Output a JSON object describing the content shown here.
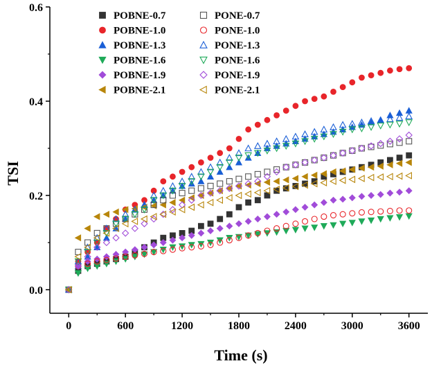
{
  "chart_data": {
    "type": "scatter",
    "title": "",
    "xlabel": "Time (s)",
    "ylabel": "TSI",
    "xlim": [
      -200,
      3800
    ],
    "ylim": [
      -0.05,
      0.6
    ],
    "xticks": [
      0,
      600,
      1200,
      1800,
      2400,
      3000,
      3600
    ],
    "xtick_labels": [
      "0",
      "600",
      "1200",
      "1800",
      "2400",
      "3000",
      "3600"
    ],
    "yticks": [
      0.0,
      0.2,
      0.4,
      0.6
    ],
    "ytick_labels": [
      "0.0",
      "0.2",
      "0.4",
      "0.6"
    ],
    "grid": false,
    "legend_position": "top-left",
    "x": [
      0,
      100,
      200,
      300,
      400,
      500,
      600,
      700,
      800,
      900,
      1000,
      1100,
      1200,
      1300,
      1400,
      1500,
      1600,
      1700,
      1800,
      1900,
      2000,
      2100,
      2200,
      2300,
      2400,
      2500,
      2600,
      2700,
      2800,
      2900,
      3000,
      3100,
      3200,
      3300,
      3400,
      3500,
      3600
    ],
    "series": [
      {
        "name": "POBNE-0.7",
        "marker": "square",
        "filled": true,
        "color": "#333333",
        "values": [
          0,
          0.04,
          0.05,
          0.055,
          0.06,
          0.065,
          0.07,
          0.08,
          0.09,
          0.1,
          0.11,
          0.115,
          0.12,
          0.125,
          0.135,
          0.14,
          0.15,
          0.16,
          0.175,
          0.185,
          0.19,
          0.2,
          0.21,
          0.215,
          0.22,
          0.225,
          0.23,
          0.24,
          0.245,
          0.25,
          0.255,
          0.26,
          0.265,
          0.27,
          0.275,
          0.28,
          0.285
        ]
      },
      {
        "name": "POBNE-1.0",
        "marker": "circle",
        "filled": true,
        "color": "#e8252a",
        "values": [
          0,
          0.06,
          0.08,
          0.1,
          0.13,
          0.15,
          0.17,
          0.18,
          0.19,
          0.21,
          0.23,
          0.24,
          0.25,
          0.26,
          0.27,
          0.28,
          0.29,
          0.3,
          0.32,
          0.34,
          0.35,
          0.36,
          0.37,
          0.38,
          0.39,
          0.4,
          0.405,
          0.41,
          0.42,
          0.43,
          0.44,
          0.45,
          0.455,
          0.46,
          0.465,
          0.468,
          0.47
        ]
      },
      {
        "name": "POBNE-1.3",
        "marker": "triangle-up",
        "filled": true,
        "color": "#1a5fd6",
        "values": [
          0,
          0.05,
          0.07,
          0.09,
          0.11,
          0.13,
          0.15,
          0.17,
          0.18,
          0.19,
          0.2,
          0.21,
          0.22,
          0.225,
          0.23,
          0.24,
          0.25,
          0.26,
          0.27,
          0.28,
          0.29,
          0.3,
          0.305,
          0.31,
          0.315,
          0.32,
          0.325,
          0.33,
          0.335,
          0.34,
          0.345,
          0.35,
          0.355,
          0.36,
          0.37,
          0.375,
          0.38
        ]
      },
      {
        "name": "POBNE-1.6",
        "marker": "triangle-down",
        "filled": true,
        "color": "#1faa59",
        "values": [
          0,
          0.035,
          0.045,
          0.05,
          0.055,
          0.06,
          0.065,
          0.07,
          0.075,
          0.08,
          0.085,
          0.09,
          0.092,
          0.095,
          0.097,
          0.1,
          0.105,
          0.11,
          0.112,
          0.115,
          0.118,
          0.12,
          0.122,
          0.125,
          0.127,
          0.13,
          0.132,
          0.135,
          0.137,
          0.14,
          0.142,
          0.145,
          0.147,
          0.15,
          0.152,
          0.154,
          0.156
        ]
      },
      {
        "name": "POBNE-1.9",
        "marker": "diamond",
        "filled": true,
        "color": "#a14cd9",
        "values": [
          0,
          0.05,
          0.06,
          0.065,
          0.07,
          0.075,
          0.08,
          0.085,
          0.09,
          0.095,
          0.1,
          0.105,
          0.11,
          0.115,
          0.12,
          0.125,
          0.13,
          0.135,
          0.14,
          0.145,
          0.15,
          0.155,
          0.16,
          0.165,
          0.17,
          0.175,
          0.18,
          0.185,
          0.19,
          0.192,
          0.195,
          0.198,
          0.2,
          0.202,
          0.205,
          0.207,
          0.21
        ]
      },
      {
        "name": "POBNE-2.1",
        "marker": "triangle-left",
        "filled": true,
        "color": "#b8860b",
        "values": [
          0,
          0.11,
          0.13,
          0.155,
          0.16,
          0.165,
          0.17,
          0.172,
          0.175,
          0.178,
          0.18,
          0.185,
          0.19,
          0.195,
          0.2,
          0.205,
          0.21,
          0.215,
          0.22,
          0.222,
          0.225,
          0.228,
          0.23,
          0.233,
          0.236,
          0.24,
          0.243,
          0.246,
          0.25,
          0.252,
          0.255,
          0.258,
          0.26,
          0.262,
          0.265,
          0.268,
          0.27
        ]
      },
      {
        "name": "PONE-0.7",
        "marker": "square",
        "filled": false,
        "color": "#555555",
        "values": [
          0,
          0.08,
          0.1,
          0.12,
          0.13,
          0.14,
          0.15,
          0.16,
          0.17,
          0.18,
          0.19,
          0.2,
          0.205,
          0.21,
          0.215,
          0.22,
          0.225,
          0.23,
          0.235,
          0.24,
          0.245,
          0.25,
          0.255,
          0.26,
          0.265,
          0.27,
          0.275,
          0.28,
          0.285,
          0.29,
          0.295,
          0.3,
          0.303,
          0.306,
          0.309,
          0.312,
          0.315
        ]
      },
      {
        "name": "PONE-1.0",
        "marker": "circle",
        "filled": false,
        "color": "#e8252a",
        "values": [
          0,
          0.05,
          0.055,
          0.06,
          0.063,
          0.066,
          0.07,
          0.073,
          0.076,
          0.08,
          0.082,
          0.085,
          0.088,
          0.09,
          0.092,
          0.095,
          0.1,
          0.105,
          0.11,
          0.115,
          0.12,
          0.125,
          0.13,
          0.135,
          0.14,
          0.145,
          0.15,
          0.155,
          0.158,
          0.16,
          0.162,
          0.164,
          0.165,
          0.166,
          0.167,
          0.168,
          0.168
        ]
      },
      {
        "name": "PONE-1.3",
        "marker": "triangle-up",
        "filled": false,
        "color": "#1a5fd6",
        "values": [
          0,
          0.06,
          0.09,
          0.11,
          0.13,
          0.15,
          0.16,
          0.17,
          0.18,
          0.2,
          0.21,
          0.22,
          0.23,
          0.24,
          0.25,
          0.26,
          0.27,
          0.28,
          0.29,
          0.3,
          0.305,
          0.31,
          0.315,
          0.32,
          0.325,
          0.33,
          0.335,
          0.34,
          0.345,
          0.35,
          0.352,
          0.355,
          0.358,
          0.36,
          0.362,
          0.365,
          0.368
        ]
      },
      {
        "name": "PONE-1.6",
        "marker": "triangle-down",
        "filled": false,
        "color": "#1faa59",
        "values": [
          0,
          0.06,
          0.08,
          0.1,
          0.12,
          0.14,
          0.15,
          0.16,
          0.17,
          0.19,
          0.2,
          0.21,
          0.22,
          0.23,
          0.24,
          0.25,
          0.26,
          0.27,
          0.28,
          0.285,
          0.29,
          0.295,
          0.3,
          0.305,
          0.31,
          0.315,
          0.32,
          0.325,
          0.33,
          0.335,
          0.34,
          0.342,
          0.345,
          0.348,
          0.35,
          0.352,
          0.355
        ]
      },
      {
        "name": "PONE-1.9",
        "marker": "diamond",
        "filled": false,
        "color": "#a14cd9",
        "values": [
          0,
          0.05,
          0.07,
          0.09,
          0.1,
          0.11,
          0.12,
          0.13,
          0.14,
          0.15,
          0.16,
          0.17,
          0.18,
          0.19,
          0.2,
          0.205,
          0.21,
          0.215,
          0.22,
          0.225,
          0.23,
          0.24,
          0.25,
          0.26,
          0.265,
          0.27,
          0.275,
          0.28,
          0.285,
          0.29,
          0.295,
          0.3,
          0.305,
          0.31,
          0.315,
          0.32,
          0.328
        ]
      },
      {
        "name": "PONE-2.1",
        "marker": "triangle-left",
        "filled": false,
        "color": "#b8860b",
        "values": [
          0,
          0.07,
          0.09,
          0.11,
          0.12,
          0.13,
          0.14,
          0.145,
          0.15,
          0.155,
          0.16,
          0.165,
          0.17,
          0.175,
          0.18,
          0.185,
          0.19,
          0.195,
          0.2,
          0.203,
          0.206,
          0.21,
          0.213,
          0.216,
          0.219,
          0.222,
          0.225,
          0.227,
          0.23,
          0.232,
          0.234,
          0.236,
          0.238,
          0.239,
          0.24,
          0.241,
          0.242
        ]
      }
    ]
  }
}
